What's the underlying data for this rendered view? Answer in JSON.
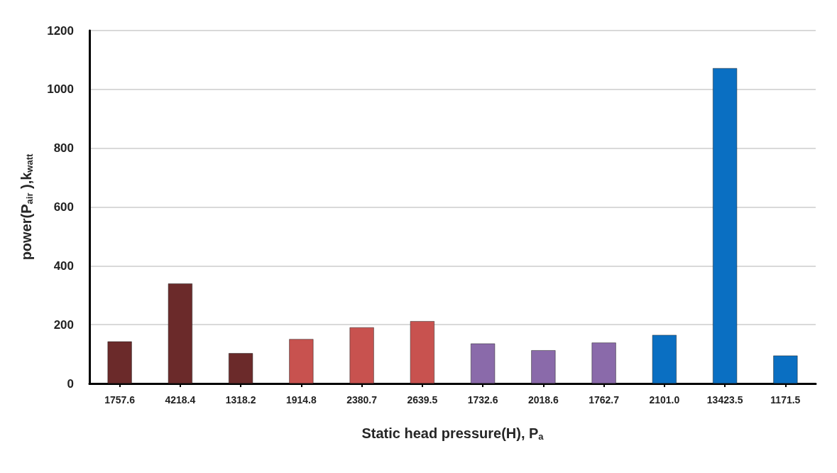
{
  "chart_data": {
    "type": "bar",
    "xlabel": "Static head pressure(H), P$_{a}$",
    "ylabel": "power(P$_{air}$ ),k$_{watt}$",
    "categories": [
      "1757.6",
      "4218.4",
      "1318.2",
      "1914.8",
      "2380.7",
      "2639.5",
      "1732.6",
      "2018.6",
      "1762.7",
      "2101.0",
      "13423.5",
      "1171.5"
    ],
    "values": [
      143,
      340,
      103,
      151,
      191,
      212,
      136,
      113,
      139,
      165,
      1072,
      95
    ],
    "colors": [
      "#6b2a2a",
      "#6b2a2a",
      "#6b2a2a",
      "#c8524f",
      "#c8524f",
      "#c8524f",
      "#8a6aaa",
      "#8a6aaa",
      "#8a6aaa",
      "#0a6fc2",
      "#0a6fc2",
      "#0a6fc2"
    ],
    "ylim": [
      0,
      1200
    ],
    "yticks": [
      0,
      200,
      400,
      600,
      800,
      1000,
      1200
    ],
    "grid": "y"
  }
}
